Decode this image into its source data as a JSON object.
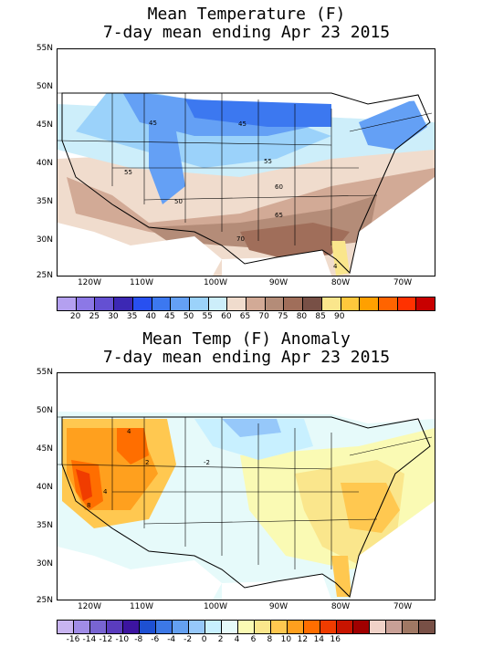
{
  "map1": {
    "title_line1": "Mean Temperature (F)",
    "title_line2": "7-day mean ending Apr 23 2015",
    "lat_labels": [
      "55N",
      "50N",
      "45N",
      "40N",
      "35N",
      "30N",
      "25N"
    ],
    "lon_labels": [
      "120W",
      "110W",
      "100W",
      "90W",
      "80W",
      "70W"
    ],
    "contour_labels": [
      "45",
      "45",
      "55",
      "55",
      "50",
      "60",
      "65",
      "70",
      "4"
    ],
    "colorbar_colors": [
      "#b4a0f0",
      "#8c78e6",
      "#6450d2",
      "#3c28b4",
      "#2850f0",
      "#3c78f0",
      "#64a0f5",
      "#9bd2fa",
      "#cdeefa",
      "#f0dccd",
      "#d2aa96",
      "#b48c78",
      "#a06e5a",
      "#785046",
      "#fae68c",
      "#ffc83c",
      "#ffa000",
      "#ff6400",
      "#ff3200",
      "#c80000"
    ],
    "colorbar_labels": [
      "20",
      "25",
      "30",
      "35",
      "40",
      "45",
      "50",
      "55",
      "60",
      "65",
      "70",
      "75",
      "80",
      "85",
      "90"
    ]
  },
  "map2": {
    "title_line1": "Mean Temp (F) Anomaly",
    "title_line2": "7-day mean ending Apr 23 2015",
    "lat_labels": [
      "55N",
      "50N",
      "45N",
      "40N",
      "35N",
      "30N",
      "25N"
    ],
    "lon_labels": [
      "120W",
      "110W",
      "100W",
      "90W",
      "80W",
      "70W"
    ],
    "contour_labels": [
      "4",
      "2",
      "4",
      "8",
      "-2"
    ],
    "colorbar_colors": [
      "#c8b4f0",
      "#a08ce6",
      "#7864d2",
      "#5a3cbe",
      "#3c14a0",
      "#1e50d2",
      "#3c78e6",
      "#64a0f0",
      "#96c8fa",
      "#c8f0ff",
      "#e6fafa",
      "#fafab4",
      "#fae68c",
      "#ffc850",
      "#ffa01e",
      "#ff6e00",
      "#f03c00",
      "#c81400",
      "#a00000",
      "#f0d2c8",
      "#c8a096",
      "#a07864",
      "#785046"
    ],
    "colorbar_labels": [
      "-16",
      "-14",
      "-12",
      "-10",
      "-8",
      "-6",
      "-4",
      "-2",
      "0",
      "2",
      "4",
      "6",
      "8",
      "10",
      "12",
      "14",
      "16"
    ]
  }
}
